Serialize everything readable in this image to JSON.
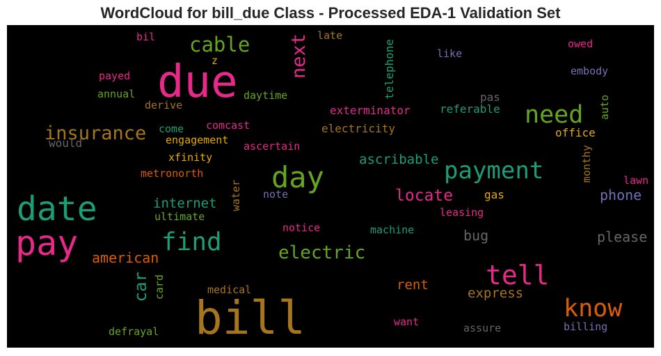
{
  "title": "WordCloud for bill_due Class - Processed EDA-1 Validation Set",
  "colors": {
    "pink": "#e7298a",
    "orange": "#d95f02",
    "teal": "#1b9e77",
    "green": "#66a61e",
    "gold": "#a6761d",
    "yellow": "#e6ab02",
    "purple": "#7570b3",
    "gray": "#666666"
  },
  "words": [
    {
      "text": "bill",
      "color": "#a6761d"
    },
    {
      "text": "due",
      "color": "#e7298a"
    },
    {
      "text": "date",
      "color": "#1b9e77"
    },
    {
      "text": "pay",
      "color": "#e7298a"
    },
    {
      "text": "day",
      "color": "#66a61e"
    },
    {
      "text": "payment",
      "color": "#1b9e77"
    },
    {
      "text": "need",
      "color": "#66a61e"
    },
    {
      "text": "tell",
      "color": "#e7298a"
    },
    {
      "text": "know",
      "color": "#d95f02"
    },
    {
      "text": "find",
      "color": "#1b9e77"
    },
    {
      "text": "cable",
      "color": "#66a61e"
    },
    {
      "text": "insurance",
      "color": "#a6761d"
    },
    {
      "text": "electric",
      "color": "#66a61e"
    },
    {
      "text": "next",
      "color": "#e7298a"
    },
    {
      "text": "car",
      "color": "#1b9e77"
    },
    {
      "text": "locate",
      "color": "#e7298a"
    },
    {
      "text": "american",
      "color": "#d95f02"
    },
    {
      "text": "internet",
      "color": "#1b9e77"
    },
    {
      "text": "ascribable",
      "color": "#1b9e77"
    },
    {
      "text": "express",
      "color": "#a6761d"
    },
    {
      "text": "rent",
      "color": "#d95f02"
    },
    {
      "text": "phone",
      "color": "#7570b3"
    },
    {
      "text": "please",
      "color": "#666666"
    },
    {
      "text": "bug",
      "color": "#666666"
    },
    {
      "text": "exterminator",
      "color": "#e7298a"
    },
    {
      "text": "referable",
      "color": "#1b9e77"
    },
    {
      "text": "electricity",
      "color": "#a6761d"
    },
    {
      "text": "office",
      "color": "#e6ab02"
    },
    {
      "text": "daytime",
      "color": "#66a61e"
    },
    {
      "text": "telephone",
      "color": "#1b9e77"
    },
    {
      "text": "engagement",
      "color": "#e6ab02"
    },
    {
      "text": "comcast",
      "color": "#e7298a"
    },
    {
      "text": "ascertain",
      "color": "#e7298a"
    },
    {
      "text": "xfinity",
      "color": "#e6ab02"
    },
    {
      "text": "metronorth",
      "color": "#d95f02"
    },
    {
      "text": "come",
      "color": "#1b9e77"
    },
    {
      "text": "would",
      "color": "#666666"
    },
    {
      "text": "derive",
      "color": "#a6761d"
    },
    {
      "text": "annual",
      "color": "#66a61e"
    },
    {
      "text": "payed",
      "color": "#e7298a"
    },
    {
      "text": "bil",
      "color": "#e7298a"
    },
    {
      "text": "z",
      "color": "#e6ab02"
    },
    {
      "text": "late",
      "color": "#a6761d"
    },
    {
      "text": "like",
      "color": "#7570b3"
    },
    {
      "text": "owed",
      "color": "#e7298a"
    },
    {
      "text": "embody",
      "color": "#7570b3"
    },
    {
      "text": "pas",
      "color": "#666666"
    },
    {
      "text": "auto",
      "color": "#66a61e"
    },
    {
      "text": "monthy",
      "color": "#a6761d"
    },
    {
      "text": "lawn",
      "color": "#e7298a"
    },
    {
      "text": "gas",
      "color": "#e6ab02"
    },
    {
      "text": "leasing",
      "color": "#e7298a"
    },
    {
      "text": "note",
      "color": "#7570b3"
    },
    {
      "text": "water",
      "color": "#a6761d"
    },
    {
      "text": "ultimate",
      "color": "#66a61e"
    },
    {
      "text": "notice",
      "color": "#e7298a"
    },
    {
      "text": "machine",
      "color": "#1b9e77"
    },
    {
      "text": "card",
      "color": "#66a61e"
    },
    {
      "text": "medical",
      "color": "#a6761d"
    },
    {
      "text": "defrayal",
      "color": "#66a61e"
    },
    {
      "text": "want",
      "color": "#e7298a"
    },
    {
      "text": "assure",
      "color": "#666666"
    },
    {
      "text": "billing",
      "color": "#7570b3"
    }
  ]
}
